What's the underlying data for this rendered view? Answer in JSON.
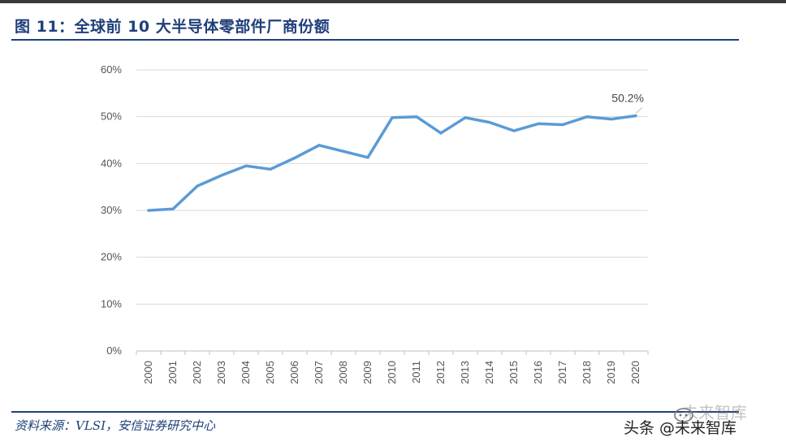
{
  "figure": {
    "title": "图 11：全球前 10 大半导体零部件厂商份额",
    "source": "资料来源：VLSI，安信证券研究中心",
    "watermark": "头条 @未来智库",
    "watermark_faint": "未来智库"
  },
  "chart_data": {
    "type": "line",
    "title": "",
    "xlabel": "",
    "ylabel": "",
    "categories": [
      "2000",
      "2001",
      "2002",
      "2003",
      "2004",
      "2005",
      "2006",
      "2007",
      "2008",
      "2009",
      "2010",
      "2011",
      "2012",
      "2013",
      "2014",
      "2015",
      "2016",
      "2017",
      "2018",
      "2019",
      "2020"
    ],
    "series": [
      {
        "values": [
          30.0,
          30.3,
          35.2,
          37.5,
          39.5,
          38.8,
          41.2,
          43.9,
          42.6,
          41.3,
          49.8,
          50.0,
          46.5,
          49.8,
          48.8,
          47.0,
          48.5,
          48.3,
          50.0,
          49.5,
          50.2
        ],
        "color": "#5b9bd5"
      }
    ],
    "ylim": [
      0,
      60
    ],
    "yticks": [
      "0%",
      "10%",
      "20%",
      "30%",
      "40%",
      "50%",
      "60%"
    ],
    "ytick_values": [
      0,
      10,
      20,
      30,
      40,
      50,
      60
    ],
    "grid": true,
    "legend": "none",
    "annotations": [
      {
        "index": 20,
        "text": "50.2%"
      }
    ]
  }
}
